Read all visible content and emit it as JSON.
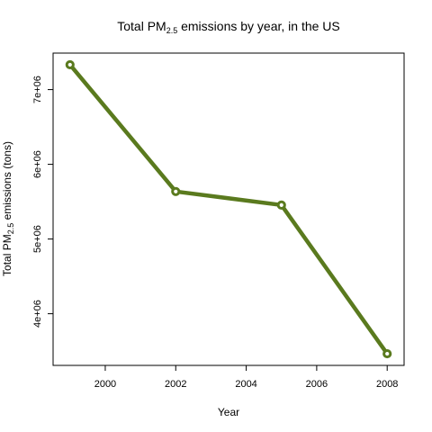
{
  "chart_data": {
    "type": "line",
    "title": {
      "prefix": "Total  PM",
      "subscript": "2.5",
      "suffix": " emissions by year, in the US"
    },
    "xlabel": "Year",
    "ylabel": {
      "prefix": "Total  PM",
      "subscript": "2.5",
      "suffix": " emissions (tons)"
    },
    "x": [
      1999,
      2002,
      2005,
      2008
    ],
    "series": [
      {
        "values": [
          7332967,
          5635780,
          5454703,
          3464206
        ]
      }
    ],
    "xlim": [
      1998.52,
      2008.48
    ],
    "ylim": [
      3308416,
      7488757
    ],
    "xticks": [
      2000,
      2002,
      2004,
      2006,
      2008
    ],
    "xtick_labels": [
      "2000",
      "2002",
      "2004",
      "2006",
      "2008"
    ],
    "yticks": [
      4000000,
      5000000,
      6000000,
      7000000
    ],
    "ytick_labels": [
      "4e+06",
      "5e+06",
      "6e+06",
      "7e+06"
    ],
    "grid": false,
    "line_color": "#5a7a1e",
    "marker_fill": "#ffffff"
  }
}
